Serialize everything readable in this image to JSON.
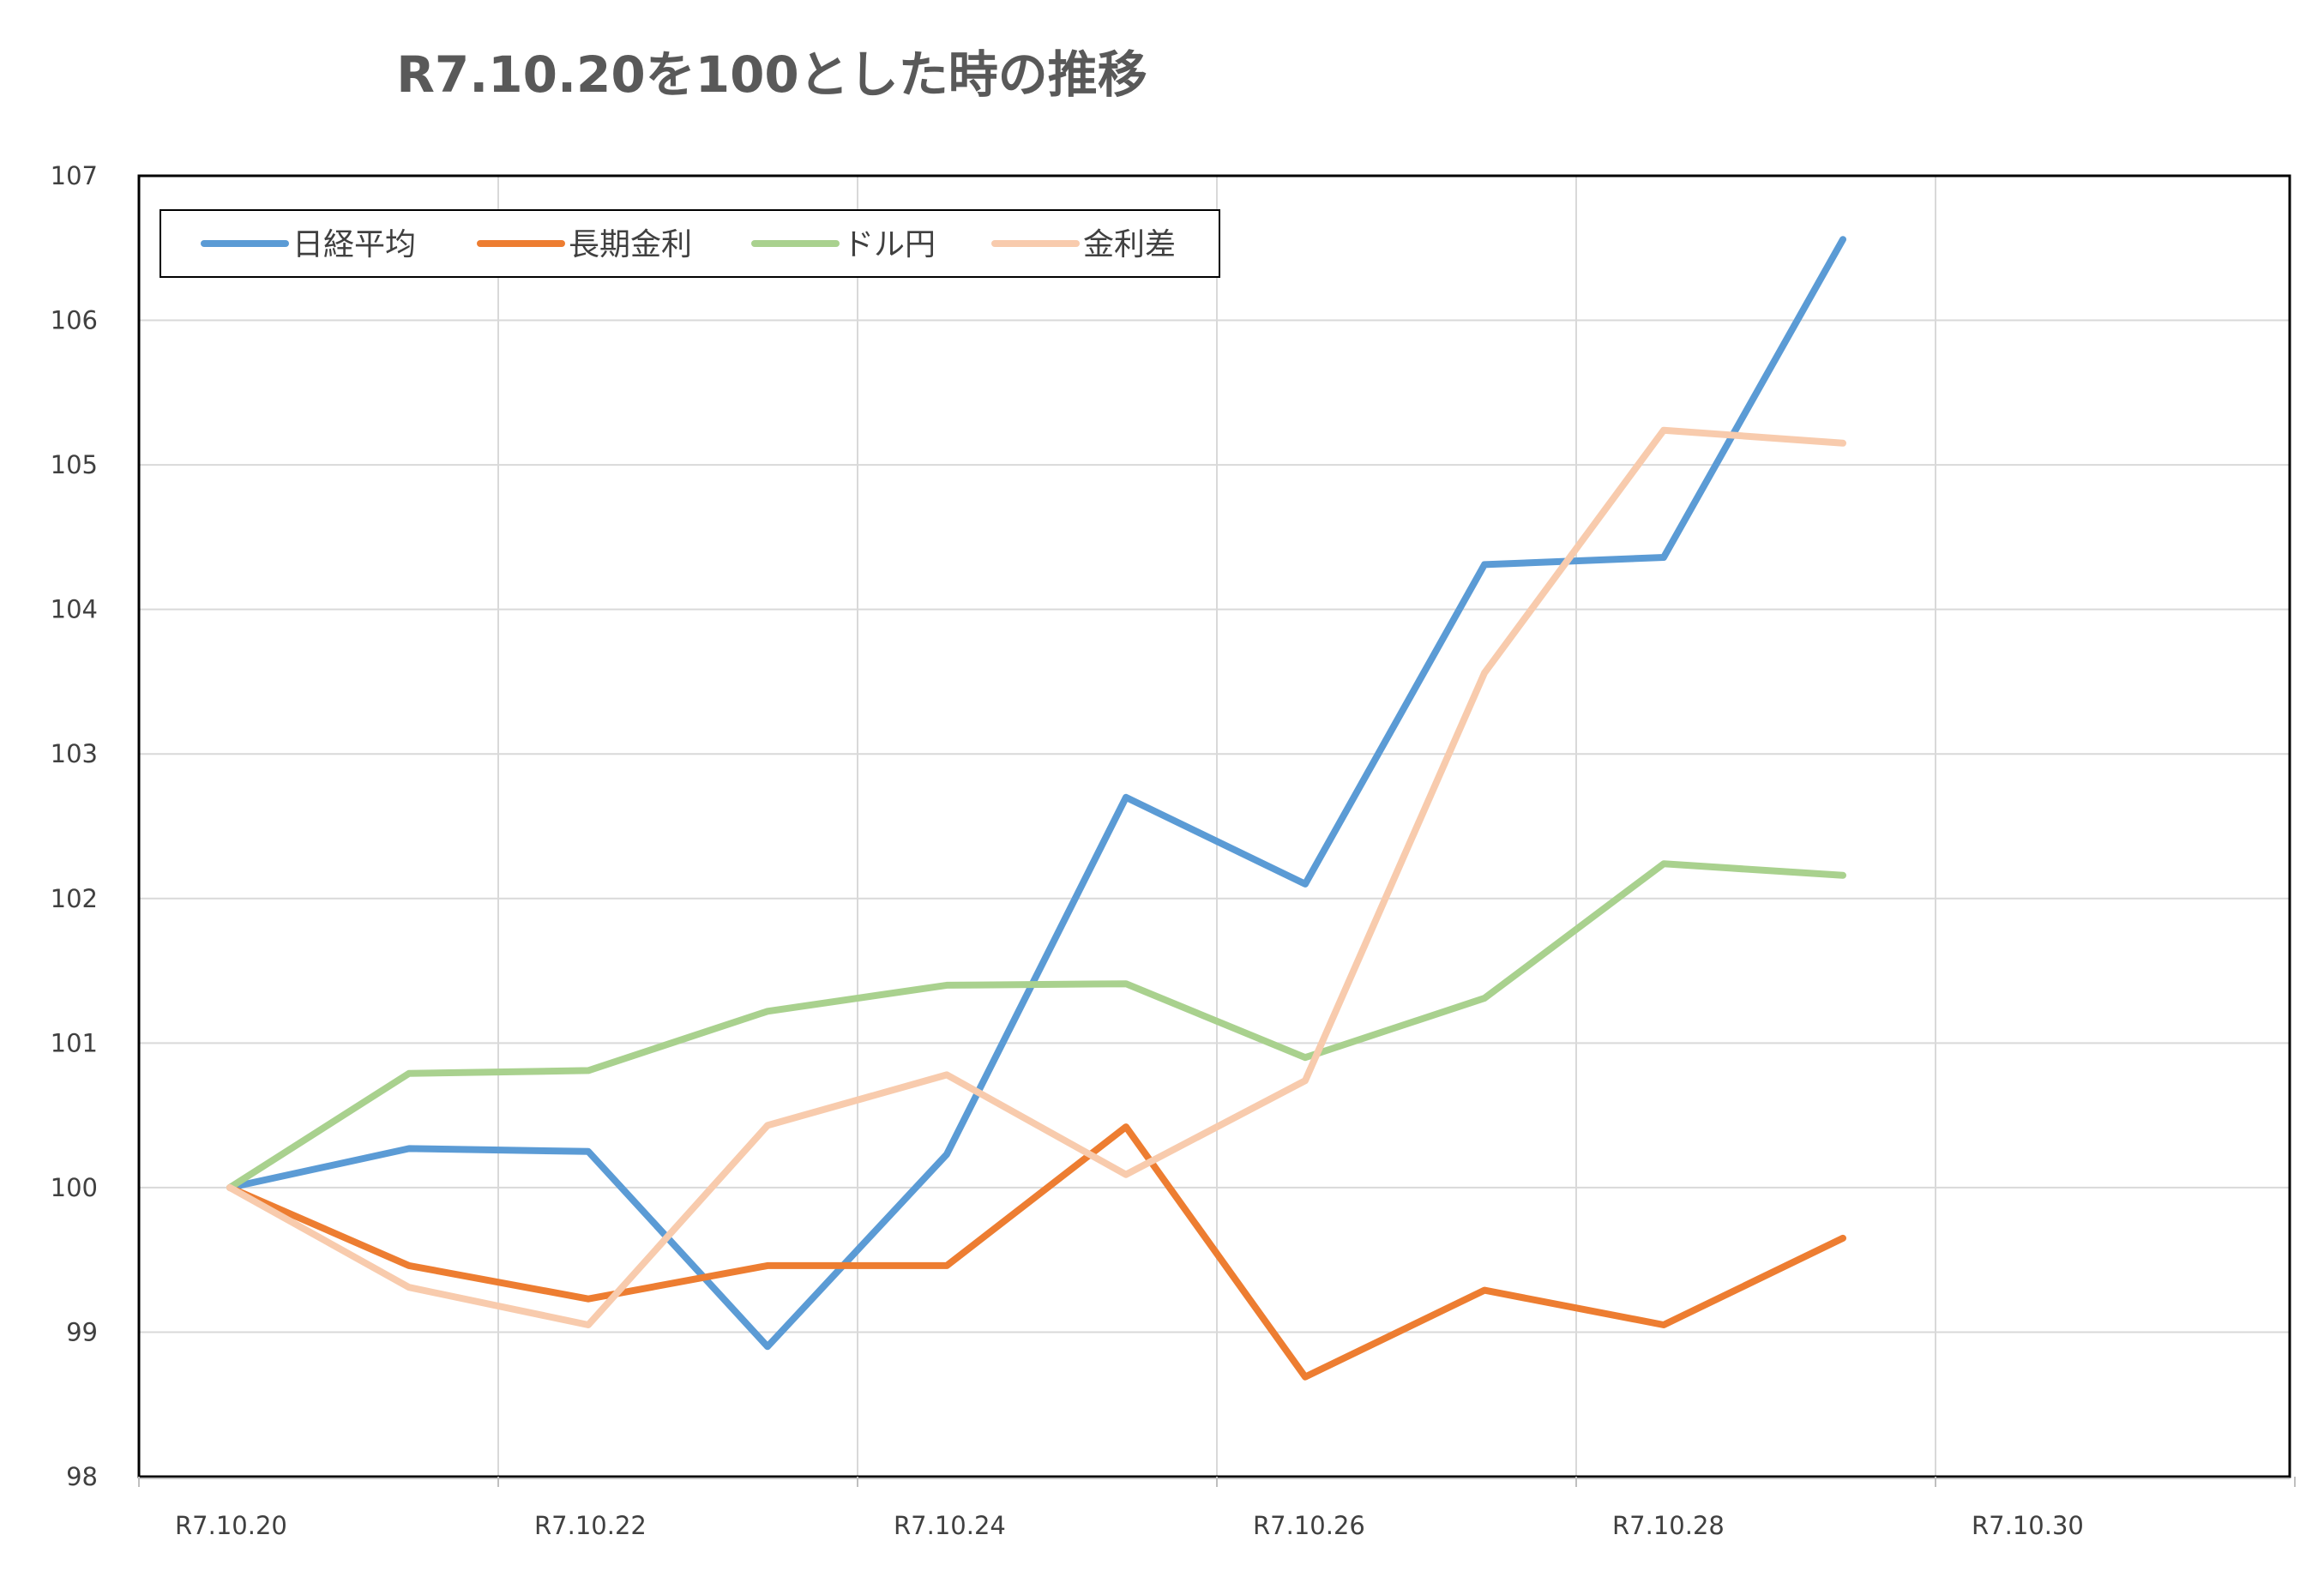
{
  "chart_data": {
    "type": "line",
    "title": "R7.10.20を100とした時の推移",
    "xlabel": "",
    "ylabel": "",
    "ylim": [
      98,
      107
    ],
    "yticks": [
      98,
      99,
      100,
      101,
      102,
      103,
      104,
      105,
      106,
      107
    ],
    "x_tick_labels": [
      "R7.10.20",
      "R7.10.22",
      "R7.10.24",
      "R7.10.26",
      "R7.10.28",
      "R7.10.30"
    ],
    "grid": true,
    "legend": "top-left",
    "colors": [
      "#5b9bd5",
      "#ed7d31",
      "#a9d18e",
      "#f8cbad"
    ],
    "series": [
      {
        "name": "日経平均",
        "values": [
          100,
          100.27,
          100.25,
          98.9,
          100.23,
          102.7,
          102.1,
          104.31,
          104.36,
          106.56
        ]
      },
      {
        "name": "長期金利",
        "values": [
          100,
          99.46,
          99.23,
          99.46,
          99.46,
          100.42,
          98.69,
          99.29,
          99.05,
          99.65
        ]
      },
      {
        "name": "ドル円",
        "values": [
          100,
          100.79,
          100.81,
          101.22,
          101.4,
          101.41,
          100.9,
          101.31,
          102.24,
          102.16
        ]
      },
      {
        "name": "金利差",
        "values": [
          100,
          99.31,
          99.05,
          100.43,
          100.78,
          100.09,
          100.74,
          103.56,
          105.24,
          105.15
        ]
      }
    ]
  }
}
